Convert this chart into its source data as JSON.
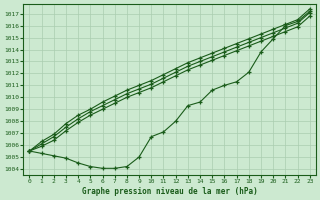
{
  "xlabel": "Graphe pression niveau de la mer (hPa)",
  "ylim": [
    1003.5,
    1017.8
  ],
  "xlim": [
    -0.5,
    23.5
  ],
  "yticks": [
    1004,
    1005,
    1006,
    1007,
    1008,
    1009,
    1010,
    1011,
    1012,
    1013,
    1014,
    1015,
    1016,
    1017
  ],
  "xticks": [
    0,
    1,
    2,
    3,
    4,
    5,
    6,
    7,
    8,
    9,
    10,
    11,
    12,
    13,
    14,
    15,
    16,
    17,
    18,
    19,
    20,
    21,
    22,
    23
  ],
  "background_color": "#cce9d0",
  "grid_color": "#aacdb0",
  "line_color": "#1a5c1a",
  "line_curve": [
    1005.5,
    1005.3,
    1005.1,
    1004.9,
    1004.5,
    1004.2,
    1004.05,
    1004.05,
    1004.2,
    1005.0,
    1006.7,
    1007.1,
    1008.0,
    1009.3,
    1009.6,
    1010.6,
    1011.0,
    1011.3,
    1012.1,
    1013.8,
    1014.9,
    1016.0,
    1016.35,
    1017.2
  ],
  "line_upper1": [
    1005.5,
    1006.3,
    1006.9,
    1007.8,
    1008.5,
    1009.0,
    1009.6,
    1010.1,
    1010.6,
    1011.0,
    1011.4,
    1011.9,
    1012.4,
    1012.9,
    1013.3,
    1013.7,
    1014.1,
    1014.5,
    1014.9,
    1015.3,
    1015.7,
    1016.1,
    1016.5,
    1017.4
  ],
  "line_upper2": [
    1005.5,
    1006.1,
    1006.7,
    1007.5,
    1008.2,
    1008.8,
    1009.3,
    1009.8,
    1010.3,
    1010.7,
    1011.1,
    1011.6,
    1012.1,
    1012.6,
    1013.0,
    1013.4,
    1013.8,
    1014.2,
    1014.6,
    1015.0,
    1015.4,
    1015.8,
    1016.2,
    1017.1
  ],
  "line_upper3": [
    1005.5,
    1005.9,
    1006.4,
    1007.2,
    1007.9,
    1008.5,
    1009.0,
    1009.5,
    1010.0,
    1010.4,
    1010.8,
    1011.3,
    1011.8,
    1012.3,
    1012.7,
    1013.1,
    1013.5,
    1013.9,
    1014.3,
    1014.7,
    1015.1,
    1015.5,
    1015.9,
    1016.8
  ]
}
